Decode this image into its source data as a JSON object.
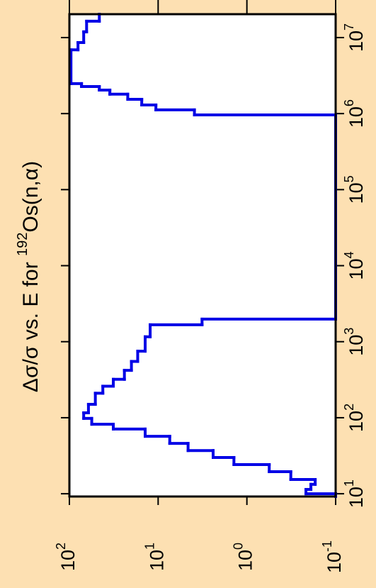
{
  "chart_data": {
    "type": "histogram",
    "title": "Δσ/σ vs. E for ",
    "title_superscript": "192",
    "title_suffix": "Os(n,α)",
    "bins": [
      9.2,
      10,
      11.4,
      13.3,
      15.4,
      19.5,
      24.2,
      30,
      37,
      46,
      57,
      71,
      82,
      98,
      116,
      150,
      210,
      260,
      320,
      420,
      550,
      750,
      1160,
      1670,
      1980,
      960000,
      1120000,
      1300000,
      1540000,
      1800000,
      2040000,
      2270000,
      2480000,
      6900000,
      8600000,
      11900000,
      16400000,
      20300000
    ],
    "values": [
      0.1,
      0.216,
      0.19,
      0.17,
      0.32,
      0.56,
      1.4,
      2.4,
      4.6,
      7.4,
      14,
      32,
      56,
      69,
      61,
      51,
      42,
      32,
      24,
      20,
      17,
      14,
      12.3,
      3.2,
      0.1,
      3.9,
      10.6,
      15.3,
      22,
      35,
      46,
      73,
      96,
      80,
      69,
      64,
      46
    ],
    "color": "#0000e6",
    "xlim": [
      9.2,
      20300000
    ],
    "xscale": "log",
    "xticks": [
      {
        "value": 10,
        "label": "10",
        "superscript": "1"
      },
      {
        "value": 100,
        "label": "10",
        "superscript": "2"
      },
      {
        "value": 1000,
        "label": "10",
        "superscript": "3"
      },
      {
        "value": 10000,
        "label": "10",
        "superscript": "4"
      },
      {
        "value": 100000,
        "label": "10",
        "superscript": "5"
      },
      {
        "value": 1000000,
        "label": "10",
        "superscript": "6"
      },
      {
        "value": 10000000,
        "label": "10",
        "superscript": "7"
      }
    ],
    "ylim": [
      0.1,
      100
    ],
    "yscale": "log",
    "yticks": [
      {
        "value": 100,
        "label": "10",
        "superscript": "2"
      },
      {
        "value": 10,
        "label": "10",
        "superscript": "1"
      },
      {
        "value": 1,
        "label": "10",
        "superscript": "0"
      },
      {
        "value": 0.1,
        "label": "10",
        "superscript": "-1"
      }
    ]
  }
}
